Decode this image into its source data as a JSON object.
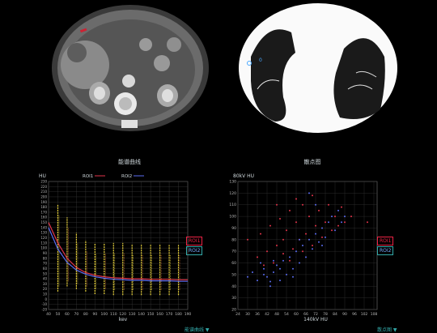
{
  "captions": {
    "left": "能谱曲线",
    "right": "散点图"
  },
  "roi_label": "0",
  "chart_data": [
    {
      "type": "line",
      "xlabel": "kev",
      "ylabel": "HU",
      "xlim": [
        40,
        190
      ],
      "ylim": [
        -20,
        230
      ],
      "x_ticks": [
        40,
        50,
        60,
        70,
        80,
        90,
        100,
        110,
        120,
        130,
        140,
        150,
        160,
        170,
        180,
        190
      ],
      "y_ticks": [
        -20,
        -10,
        0,
        10,
        20,
        30,
        40,
        50,
        60,
        70,
        80,
        90,
        100,
        110,
        120,
        130,
        140,
        150,
        160,
        170,
        180,
        190,
        200,
        210,
        220,
        230
      ],
      "legend_top": [
        "ROI1",
        "ROI2"
      ],
      "legend_side": [
        "ROI1",
        "ROI2"
      ],
      "series": [
        {
          "name": "ROI1",
          "color": "#e2344a",
          "x": [
            40,
            50,
            60,
            70,
            80,
            90,
            100,
            110,
            120,
            130,
            140,
            150,
            160,
            170,
            180,
            190
          ],
          "values": [
            150,
            110,
            80,
            62,
            52,
            47,
            44,
            42,
            41,
            40,
            40,
            39,
            39,
            39,
            38,
            38
          ]
        },
        {
          "name": "ROI2",
          "color": "#5a6cf0",
          "x": [
            40,
            50,
            60,
            70,
            80,
            90,
            100,
            110,
            120,
            130,
            140,
            150,
            160,
            170,
            180,
            190
          ],
          "values": [
            140,
            98,
            72,
            57,
            49,
            44,
            41,
            39,
            38,
            37,
            37,
            36,
            36,
            36,
            35,
            35
          ]
        }
      ],
      "error_bars": [
        {
          "x": 50,
          "low": 15,
          "high": 185
        },
        {
          "x": 60,
          "low": 25,
          "high": 160
        },
        {
          "x": 70,
          "low": 20,
          "high": 130
        },
        {
          "x": 80,
          "low": 15,
          "high": 115
        },
        {
          "x": 90,
          "low": 10,
          "high": 110
        },
        {
          "x": 100,
          "low": 10,
          "high": 110
        },
        {
          "x": 110,
          "low": 8,
          "high": 110
        },
        {
          "x": 120,
          "low": 8,
          "high": 110
        },
        {
          "x": 130,
          "low": 8,
          "high": 108
        },
        {
          "x": 140,
          "low": 8,
          "high": 108
        },
        {
          "x": 150,
          "low": 8,
          "high": 108
        },
        {
          "x": 160,
          "low": 8,
          "high": 108
        },
        {
          "x": 170,
          "low": 8,
          "high": 106
        },
        {
          "x": 180,
          "low": 8,
          "high": 106
        }
      ],
      "footer": "能谱曲线 ▼"
    },
    {
      "type": "scatter",
      "xlabel": "140kV HU",
      "ylabel": "80kV HU",
      "xlim": [
        24,
        110
      ],
      "ylim": [
        20,
        130
      ],
      "x_ticks": [
        24,
        30,
        36,
        42,
        48,
        54,
        60,
        66,
        72,
        78,
        84,
        90,
        96,
        102,
        108
      ],
      "y_ticks": [
        20,
        30,
        40,
        50,
        60,
        70,
        80,
        90,
        100,
        110,
        120,
        130
      ],
      "legend_side": [
        "ROI1",
        "ROI2"
      ],
      "series": [
        {
          "name": "ROI1",
          "color": "#e2344a",
          "points": [
            [
              30,
              80
            ],
            [
              36,
              65
            ],
            [
              38,
              85
            ],
            [
              42,
              70
            ],
            [
              44,
              92
            ],
            [
              46,
              60
            ],
            [
              48,
              75
            ],
            [
              50,
              98
            ],
            [
              52,
              68
            ],
            [
              54,
              88
            ],
            [
              56,
              105
            ],
            [
              58,
              72
            ],
            [
              60,
              95
            ],
            [
              62,
              80
            ],
            [
              64,
              110
            ],
            [
              66,
              85
            ],
            [
              68,
              100
            ],
            [
              70,
              75
            ],
            [
              72,
              92
            ],
            [
              74,
              105
            ],
            [
              76,
              82
            ],
            [
              78,
              95
            ],
            [
              80,
              110
            ],
            [
              82,
              88
            ],
            [
              84,
              100
            ],
            [
              86,
              92
            ],
            [
              88,
              108
            ],
            [
              90,
              95
            ],
            [
              94,
              100
            ],
            [
              104,
              95
            ],
            [
              48,
              110
            ],
            [
              56,
              62
            ],
            [
              40,
              58
            ],
            [
              64,
              70
            ],
            [
              52,
              80
            ],
            [
              70,
              118
            ],
            [
              60,
              115
            ]
          ]
        },
        {
          "name": "ROI2",
          "color": "#5a6cf0",
          "points": [
            [
              30,
              48
            ],
            [
              33,
              52
            ],
            [
              36,
              45
            ],
            [
              38,
              60
            ],
            [
              40,
              55
            ],
            [
              42,
              48
            ],
            [
              44,
              40
            ],
            [
              46,
              52
            ],
            [
              48,
              58
            ],
            [
              50,
              45
            ],
            [
              52,
              62
            ],
            [
              54,
              50
            ],
            [
              56,
              65
            ],
            [
              58,
              55
            ],
            [
              60,
              70
            ],
            [
              62,
              60
            ],
            [
              64,
              75
            ],
            [
              66,
              65
            ],
            [
              68,
              80
            ],
            [
              70,
              72
            ],
            [
              72,
              85
            ],
            [
              74,
              78
            ],
            [
              76,
              90
            ],
            [
              78,
              82
            ],
            [
              80,
              95
            ],
            [
              82,
              100
            ],
            [
              84,
              88
            ],
            [
              86,
              105
            ],
            [
              88,
              95
            ],
            [
              90,
              100
            ],
            [
              46,
              62
            ],
            [
              40,
              50
            ],
            [
              50,
              55
            ],
            [
              58,
              48
            ],
            [
              62,
              80
            ],
            [
              72,
              110
            ],
            [
              68,
              120
            ],
            [
              76,
              75
            ],
            [
              44,
              44
            ]
          ]
        }
      ],
      "footer": "散点图 ▼"
    }
  ]
}
